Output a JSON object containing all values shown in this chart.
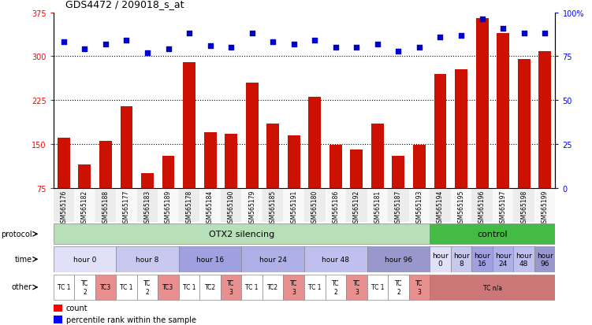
{
  "title": "GDS4472 / 209018_s_at",
  "samples": [
    "GSM565176",
    "GSM565182",
    "GSM565188",
    "GSM565177",
    "GSM565183",
    "GSM565189",
    "GSM565178",
    "GSM565184",
    "GSM565190",
    "GSM565179",
    "GSM565185",
    "GSM565191",
    "GSM565180",
    "GSM565186",
    "GSM565192",
    "GSM565181",
    "GSM565187",
    "GSM565193",
    "GSM565194",
    "GSM565195",
    "GSM565196",
    "GSM565197",
    "GSM565198",
    "GSM565199"
  ],
  "counts": [
    160,
    115,
    155,
    215,
    100,
    130,
    290,
    170,
    168,
    255,
    185,
    165,
    230,
    148,
    140,
    185,
    130,
    148,
    270,
    278,
    365,
    340,
    295,
    308
  ],
  "percentile": [
    83,
    79,
    82,
    84,
    77,
    79,
    88,
    81,
    80,
    88,
    83,
    82,
    84,
    80,
    80,
    82,
    78,
    80,
    86,
    87,
    96,
    91,
    88,
    88
  ],
  "ylim_left": [
    75,
    375
  ],
  "ylim_right": [
    0,
    100
  ],
  "yticks_left": [
    75,
    150,
    225,
    300,
    375
  ],
  "yticks_right": [
    0,
    25,
    50,
    75,
    100
  ],
  "bar_color": "#cc1100",
  "scatter_color": "#0000cc",
  "protocol_groups": [
    {
      "label": "OTX2 silencing",
      "start": 0,
      "end": 18,
      "color": "#b8e0b8"
    },
    {
      "label": "control",
      "start": 18,
      "end": 24,
      "color": "#44bb44"
    }
  ],
  "time_groups": [
    {
      "label": "hour 0",
      "start": 0,
      "end": 3,
      "color": "#e0e0f8"
    },
    {
      "label": "hour 8",
      "start": 3,
      "end": 6,
      "color": "#c8c8ee"
    },
    {
      "label": "hour 16",
      "start": 6,
      "end": 9,
      "color": "#a0a0e0"
    },
    {
      "label": "hour 24",
      "start": 9,
      "end": 12,
      "color": "#b0b0e8"
    },
    {
      "label": "hour 48",
      "start": 12,
      "end": 15,
      "color": "#c0c0f0"
    },
    {
      "label": "hour 96",
      "start": 15,
      "end": 18,
      "color": "#9898cc"
    },
    {
      "label": "hour\n0",
      "start": 18,
      "end": 19,
      "color": "#e0e0f8"
    },
    {
      "label": "hour\n8",
      "start": 19,
      "end": 20,
      "color": "#c8c8ee"
    },
    {
      "label": "hour\n16",
      "start": 20,
      "end": 21,
      "color": "#a0a0e0"
    },
    {
      "label": "hour\n24",
      "start": 21,
      "end": 22,
      "color": "#b0b0e8"
    },
    {
      "label": "hour\n48",
      "start": 22,
      "end": 23,
      "color": "#c0c0f0"
    },
    {
      "label": "hour\n96",
      "start": 23,
      "end": 24,
      "color": "#9898cc"
    }
  ],
  "other_groups": [
    {
      "label": "TC 1",
      "start": 0,
      "end": 1,
      "color": "#ffffff"
    },
    {
      "label": "TC\n2",
      "start": 1,
      "end": 2,
      "color": "#ffffff"
    },
    {
      "label": "TC3",
      "start": 2,
      "end": 3,
      "color": "#e89090"
    },
    {
      "label": "TC 1",
      "start": 3,
      "end": 4,
      "color": "#ffffff"
    },
    {
      "label": "TC\n2",
      "start": 4,
      "end": 5,
      "color": "#ffffff"
    },
    {
      "label": "TC3",
      "start": 5,
      "end": 6,
      "color": "#e89090"
    },
    {
      "label": "TC 1",
      "start": 6,
      "end": 7,
      "color": "#ffffff"
    },
    {
      "label": "TC2",
      "start": 7,
      "end": 8,
      "color": "#ffffff"
    },
    {
      "label": "TC\n3",
      "start": 8,
      "end": 9,
      "color": "#e89090"
    },
    {
      "label": "TC 1",
      "start": 9,
      "end": 10,
      "color": "#ffffff"
    },
    {
      "label": "TC2",
      "start": 10,
      "end": 11,
      "color": "#ffffff"
    },
    {
      "label": "TC\n3",
      "start": 11,
      "end": 12,
      "color": "#e89090"
    },
    {
      "label": "TC 1",
      "start": 12,
      "end": 13,
      "color": "#ffffff"
    },
    {
      "label": "TC\n2",
      "start": 13,
      "end": 14,
      "color": "#ffffff"
    },
    {
      "label": "TC\n3",
      "start": 14,
      "end": 15,
      "color": "#e89090"
    },
    {
      "label": "TC 1",
      "start": 15,
      "end": 16,
      "color": "#ffffff"
    },
    {
      "label": "TC\n2",
      "start": 16,
      "end": 17,
      "color": "#ffffff"
    },
    {
      "label": "TC\n3",
      "start": 17,
      "end": 18,
      "color": "#e89090"
    },
    {
      "label": "TC n/a",
      "start": 18,
      "end": 24,
      "color": "#cc7777"
    }
  ],
  "background_color": "#ffffff"
}
